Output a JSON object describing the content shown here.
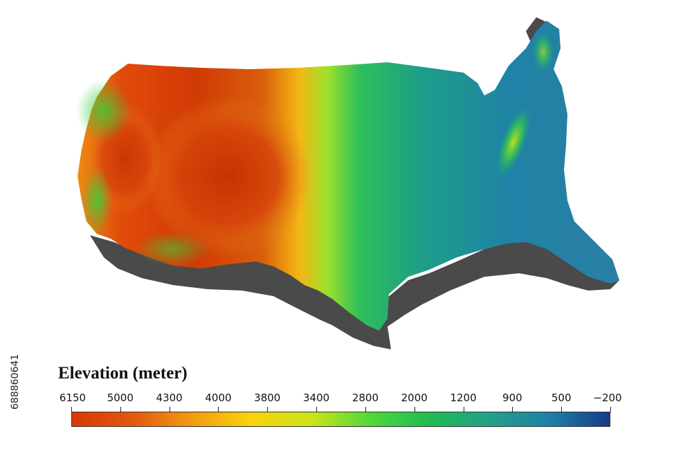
{
  "map": {
    "region": "contiguous United States",
    "style": "color-shaded elevation relief with drop shadow"
  },
  "legend": {
    "title": "Elevation (meter)",
    "ticks": [
      "6150",
      "5000",
      "4300",
      "4000",
      "3800",
      "3400",
      "2800",
      "2000",
      "1200",
      "900",
      "500",
      "−200"
    ],
    "tick_values": [
      6150,
      5000,
      4300,
      4000,
      3800,
      3400,
      2800,
      2000,
      1200,
      900,
      500,
      -200
    ],
    "colors": [
      "#d73a05",
      "#e2570e",
      "#f39a12",
      "#f7d30a",
      "#cde418",
      "#4fd83a",
      "#1fbb52",
      "#24a08a",
      "#1f7fa7",
      "#173a86"
    ]
  },
  "image_id": "688860641",
  "colors": {
    "shadow": "#4a4a4a",
    "background": "#ffffff"
  }
}
